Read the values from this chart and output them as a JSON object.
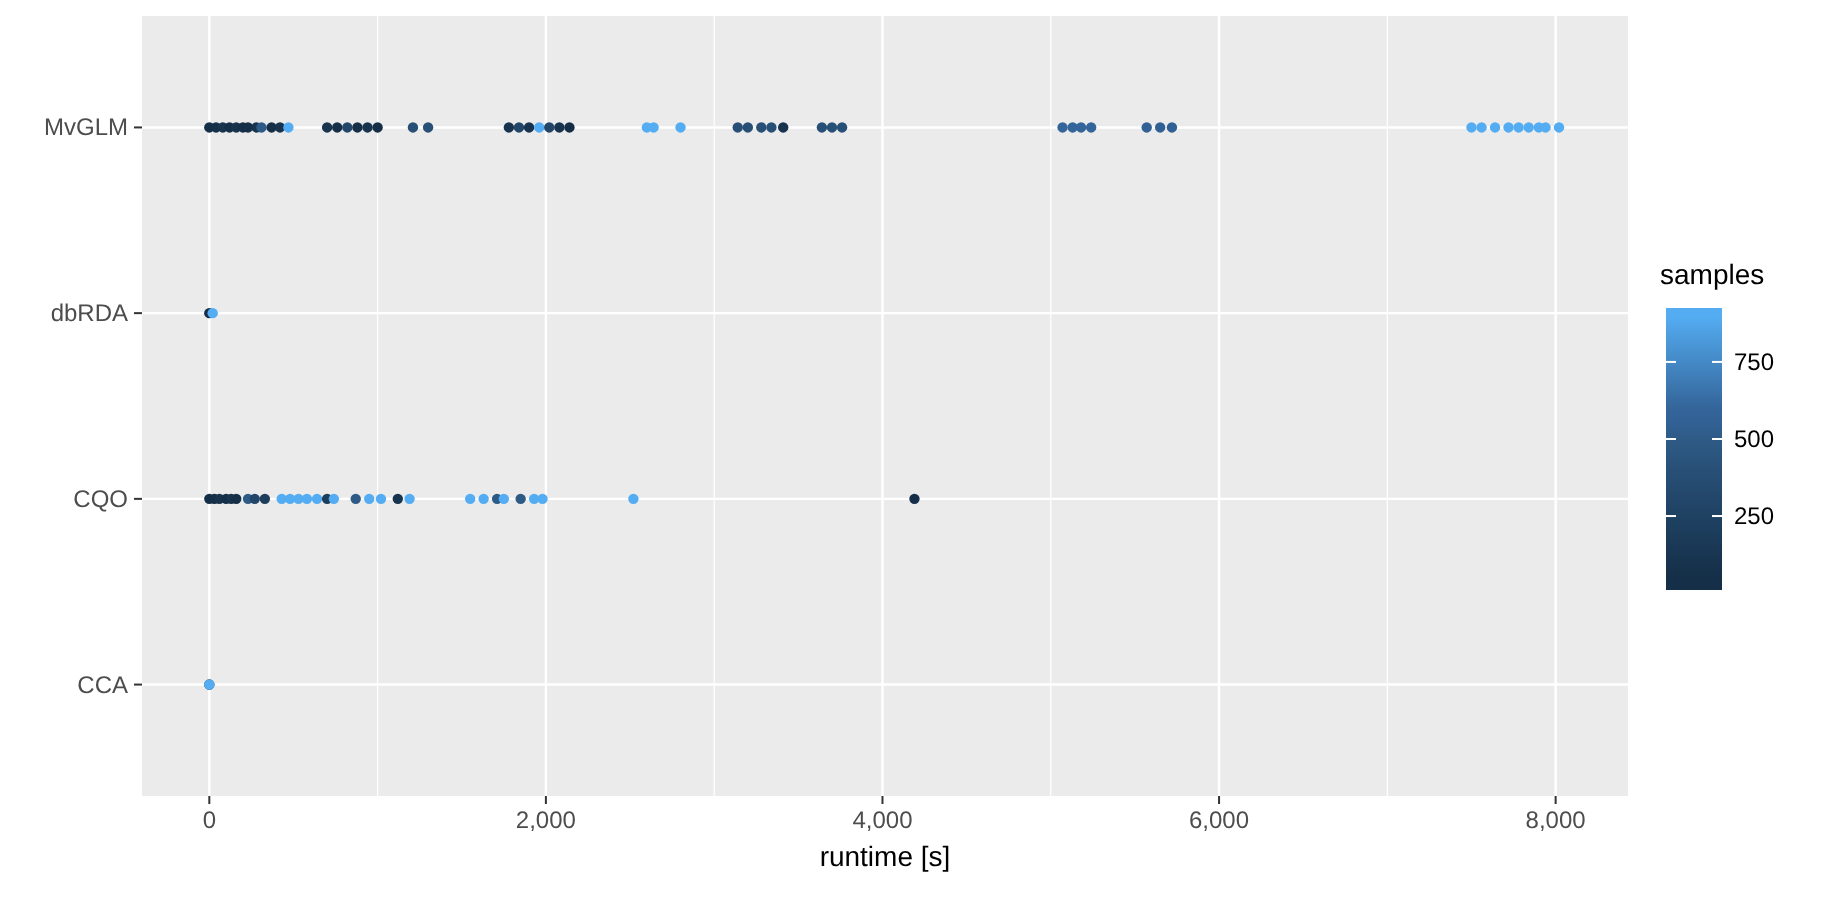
{
  "chart_data": {
    "type": "scatter",
    "orientation": "horizontal",
    "categories": [
      "MvGLM",
      "dbRDA",
      "CQO",
      "CCA"
    ],
    "xlabel": "runtime [s]",
    "legend_title": "samples",
    "grid": true,
    "marker": "circle",
    "xlim": [
      -400,
      8430
    ],
    "xticks": [
      {
        "value": 0,
        "label": "0"
      },
      {
        "value": 1000,
        "label": null
      },
      {
        "value": 2000,
        "label": "2,000"
      },
      {
        "value": 3000,
        "label": null
      },
      {
        "value": 4000,
        "label": "4,000"
      },
      {
        "value": 5000,
        "label": null
      },
      {
        "value": 6000,
        "label": "6,000"
      },
      {
        "value": 7000,
        "label": null
      },
      {
        "value": 8000,
        "label": "8,000"
      }
    ],
    "clim": [
      10,
      925
    ],
    "cticks": [
      250,
      500,
      750
    ],
    "series": [
      {
        "x": [
          "MvGLM",
          "MvGLM",
          "MvGLM",
          "MvGLM",
          "MvGLM",
          "MvGLM",
          "MvGLM",
          "MvGLM",
          "MvGLM",
          "MvGLM",
          "MvGLM",
          "MvGLM",
          "MvGLM",
          "MvGLM",
          "MvGLM",
          "MvGLM",
          "MvGLM",
          "MvGLM",
          "MvGLM",
          "MvGLM",
          "MvGLM",
          "MvGLM",
          "MvGLM",
          "MvGLM",
          "MvGLM",
          "MvGLM",
          "MvGLM",
          "MvGLM",
          "MvGLM",
          "MvGLM",
          "MvGLM",
          "MvGLM",
          "MvGLM",
          "MvGLM",
          "MvGLM",
          "MvGLM",
          "MvGLM",
          "MvGLM",
          "MvGLM",
          "MvGLM",
          "MvGLM",
          "MvGLM",
          "MvGLM",
          "MvGLM",
          "MvGLM",
          "MvGLM",
          "MvGLM",
          "MvGLM",
          "MvGLM",
          "MvGLM",
          "MvGLM",
          "MvGLM",
          "MvGLM",
          "MvGLM"
        ],
        "values": [
          0,
          40,
          80,
          120,
          160,
          200,
          230,
          280,
          310,
          370,
          420,
          470,
          700,
          760,
          820,
          880,
          940,
          1000,
          1210,
          1300,
          1780,
          1840,
          1900,
          1960,
          2020,
          2080,
          2140,
          2600,
          2640,
          2800,
          3140,
          3200,
          3280,
          3340,
          3410,
          3640,
          3700,
          3760,
          5070,
          5130,
          5180,
          5240,
          5570,
          5650,
          5720,
          7500,
          7560,
          7640,
          7720,
          7780,
          7840,
          7900,
          7940,
          8020
        ],
        "cvalues": [
          50,
          50,
          100,
          50,
          100,
          50,
          50,
          100,
          500,
          50,
          100,
          900,
          100,
          50,
          300,
          50,
          100,
          50,
          400,
          400,
          100,
          300,
          100,
          900,
          300,
          100,
          50,
          900,
          900,
          900,
          400,
          400,
          400,
          400,
          100,
          400,
          400,
          400,
          600,
          600,
          600,
          600,
          550,
          550,
          550,
          900,
          900,
          900,
          900,
          900,
          900,
          900,
          900,
          900
        ],
        "colors": [
          "#152f48",
          "#152f48",
          "#17334e",
          "#152f48",
          "#17334e",
          "#152f48",
          "#152f48",
          "#17334e",
          "#2e5b86",
          "#152f48",
          "#17334e",
          "#54adf2",
          "#17334e",
          "#152f48",
          "#224669",
          "#152f48",
          "#17334e",
          "#152f48",
          "#285077",
          "#285077",
          "#17334e",
          "#224669",
          "#17334e",
          "#54adf2",
          "#224669",
          "#17334e",
          "#152f48",
          "#54adf2",
          "#54adf2",
          "#54adf2",
          "#285077",
          "#285077",
          "#285077",
          "#285077",
          "#17334e",
          "#285077",
          "#285077",
          "#285077",
          "#34659a",
          "#34659a",
          "#34659a",
          "#34659a",
          "#316094",
          "#316094",
          "#316094",
          "#54adf2",
          "#54adf2",
          "#54adf2",
          "#54adf2",
          "#54adf2",
          "#54adf2",
          "#54adf2",
          "#54adf2",
          "#54adf2"
        ]
      },
      {
        "x": [
          "CQO",
          "CQO",
          "CQO",
          "CQO",
          "CQO",
          "CQO",
          "CQO",
          "CQO",
          "CQO",
          "CQO",
          "CQO",
          "CQO",
          "CQO",
          "CQO",
          "CQO",
          "CQO",
          "CQO",
          "CQO",
          "CQO",
          "CQO",
          "CQO",
          "CQO",
          "CQO",
          "CQO",
          "CQO",
          "CQO",
          "CQO",
          "CQO",
          "CQO",
          "CQO"
        ],
        "values": [
          0,
          30,
          60,
          100,
          130,
          160,
          230,
          270,
          330,
          430,
          480,
          530,
          580,
          640,
          700,
          740,
          870,
          950,
          1020,
          1120,
          1190,
          1550,
          1630,
          1710,
          1750,
          1850,
          1930,
          1980,
          2520,
          4190
        ],
        "cvalues": [
          50,
          50,
          100,
          50,
          100,
          50,
          500,
          300,
          200,
          900,
          900,
          900,
          900,
          900,
          200,
          900,
          500,
          900,
          900,
          100,
          900,
          900,
          900,
          500,
          900,
          500,
          900,
          900,
          900,
          50
        ],
        "colors": [
          "#152f48",
          "#152f48",
          "#17334e",
          "#152f48",
          "#17334e",
          "#152f48",
          "#2e5b86",
          "#224669",
          "#1c3d5b",
          "#54adf2",
          "#54adf2",
          "#54adf2",
          "#54adf2",
          "#54adf2",
          "#1c3d5b",
          "#54adf2",
          "#2e5b86",
          "#54adf2",
          "#54adf2",
          "#17334e",
          "#54adf2",
          "#54adf2",
          "#54adf2",
          "#2e5b86",
          "#54adf2",
          "#2e5b86",
          "#54adf2",
          "#54adf2",
          "#54adf2",
          "#152f48"
        ]
      },
      {
        "x": [
          "dbRDA",
          "dbRDA",
          "CCA",
          "CCA"
        ],
        "values": [
          0,
          20,
          0,
          0
        ],
        "cvalues": [
          50,
          900,
          50,
          900
        ],
        "colors": [
          "#152f48",
          "#54adf2",
          "#152f48",
          "#54adf2"
        ]
      }
    ]
  }
}
